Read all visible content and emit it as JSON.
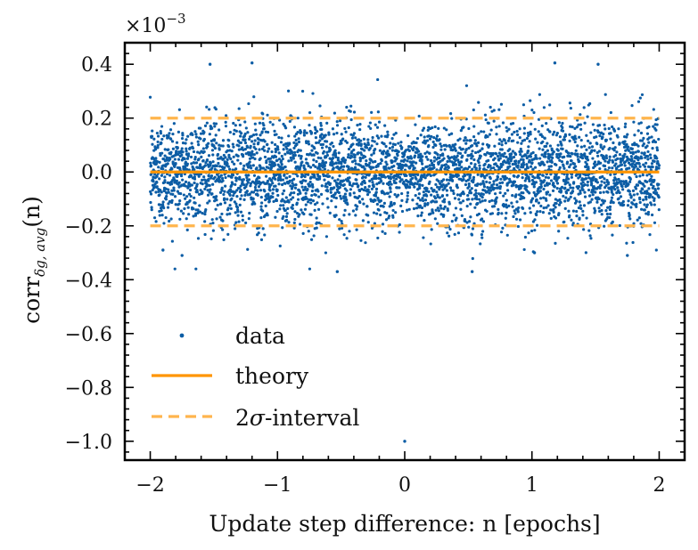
{
  "chart_data": {
    "type": "scatter",
    "xlabel": "Update step difference: n [epochs]",
    "ylabel": {
      "main": "corr",
      "subscript": "δg, avg",
      "suffix": "(n)"
    },
    "y_multiplier": {
      "base": "×10",
      "exponent": "−3"
    },
    "xlim": [
      -2.2,
      2.2
    ],
    "ylim": [
      -1.07,
      0.48
    ],
    "xticks": [
      -2,
      -1,
      0,
      1,
      2
    ],
    "xtick_labels": [
      "−2",
      "−1",
      "0",
      "1",
      "2"
    ],
    "yticks": [
      0.4,
      0.2,
      0.0,
      -0.2,
      -0.4,
      -0.6,
      -0.8,
      -1.0
    ],
    "ytick_labels": [
      "0.4",
      "0.2",
      "0.0",
      "−0.2",
      "−0.4",
      "−0.6",
      "−0.8",
      "−1.0"
    ],
    "colors": {
      "data": "#0c5da5",
      "theory": "#ff9500",
      "interval": "#ffb54d"
    },
    "series": [
      {
        "name": "data",
        "kind": "points",
        "x_range": [
          -2,
          2
        ],
        "n_points": 4000,
        "sigma": 0.1,
        "outliers": [
          {
            "x": 0.0,
            "y": -1.0
          },
          {
            "x": -0.53,
            "y": -0.37
          },
          {
            "x": 0.53,
            "y": -0.37
          },
          {
            "x": -1.53,
            "y": 0.4
          },
          {
            "x": -1.2,
            "y": 0.405
          },
          {
            "x": 1.18,
            "y": 0.405
          },
          {
            "x": 1.52,
            "y": 0.4
          },
          {
            "x": -1.75,
            "y": -0.31
          },
          {
            "x": 1.75,
            "y": -0.31
          },
          {
            "x": -1.9,
            "y": -0.29
          },
          {
            "x": 1.02,
            "y": -0.3
          }
        ]
      },
      {
        "name": "theory",
        "kind": "line",
        "x": [
          -2,
          2
        ],
        "y": [
          0.0,
          0.0
        ]
      },
      {
        "name": "2σ-interval",
        "kind": "dashed",
        "x": [
          -2,
          2
        ],
        "y_upper": 0.2,
        "y_lower": -0.2
      }
    ],
    "legend": {
      "position": "lower-left",
      "entries": [
        {
          "label": "data"
        },
        {
          "label_prefix": "2",
          "label_symbol": "σ",
          "label_suffix": "-interval"
        },
        {
          "label": "theory"
        }
      ]
    }
  }
}
